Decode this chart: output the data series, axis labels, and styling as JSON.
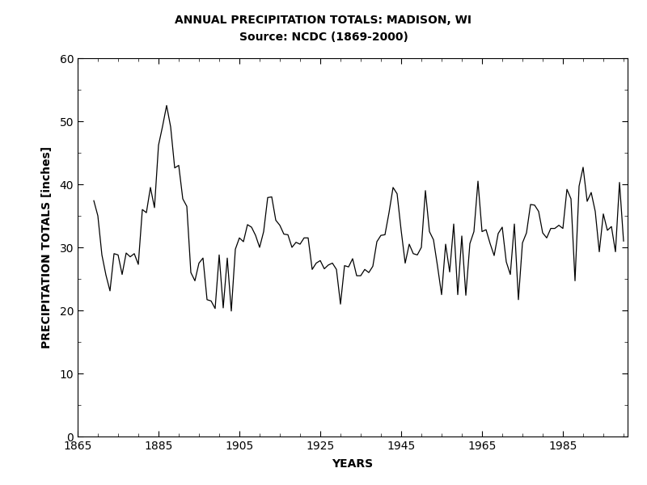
{
  "title_line1": "ANNUAL PRECIPITATION TOTALS: MADISON, WI",
  "title_line2": "Source: NCDC (1869-2000)",
  "xlabel": "YEARS",
  "ylabel": "PRECIPITATION TOTALS [inches]",
  "xlim": [
    1865,
    2001
  ],
  "ylim": [
    0,
    60
  ],
  "xticks": [
    1865,
    1885,
    1905,
    1925,
    1945,
    1965,
    1985
  ],
  "yticks": [
    0,
    10,
    20,
    30,
    40,
    50,
    60
  ],
  "line_color": "#000000",
  "background_color": "#ffffff",
  "title_fontsize": 10,
  "subtitle_fontsize": 10,
  "axis_label_fontsize": 10,
  "tick_fontsize": 10,
  "years": [
    1869,
    1870,
    1871,
    1872,
    1873,
    1874,
    1875,
    1876,
    1877,
    1878,
    1879,
    1880,
    1881,
    1882,
    1883,
    1884,
    1885,
    1886,
    1887,
    1888,
    1889,
    1890,
    1891,
    1892,
    1893,
    1894,
    1895,
    1896,
    1897,
    1898,
    1899,
    1900,
    1901,
    1902,
    1903,
    1904,
    1905,
    1906,
    1907,
    1908,
    1909,
    1910,
    1911,
    1912,
    1913,
    1914,
    1915,
    1916,
    1917,
    1918,
    1919,
    1920,
    1921,
    1922,
    1923,
    1924,
    1925,
    1926,
    1927,
    1928,
    1929,
    1930,
    1931,
    1932,
    1933,
    1934,
    1935,
    1936,
    1937,
    1938,
    1939,
    1940,
    1941,
    1942,
    1943,
    1944,
    1945,
    1946,
    1947,
    1948,
    1949,
    1950,
    1951,
    1952,
    1953,
    1954,
    1955,
    1956,
    1957,
    1958,
    1959,
    1960,
    1961,
    1962,
    1963,
    1964,
    1965,
    1966,
    1967,
    1968,
    1969,
    1970,
    1971,
    1972,
    1973,
    1974,
    1975,
    1976,
    1977,
    1978,
    1979,
    1980,
    1981,
    1982,
    1983,
    1984,
    1985,
    1986,
    1987,
    1988,
    1989,
    1990,
    1991,
    1992,
    1993,
    1994,
    1995,
    1996,
    1997,
    1998,
    1999,
    2000
  ],
  "precip": [
    37.4,
    35.0,
    28.8,
    25.6,
    23.1,
    29.0,
    28.8,
    25.7,
    29.1,
    28.5,
    29.0,
    27.3,
    36.0,
    35.5,
    39.5,
    36.3,
    46.2,
    49.2,
    52.5,
    49.1,
    42.6,
    43.0,
    37.7,
    36.5,
    26.0,
    24.7,
    27.5,
    28.3,
    21.7,
    21.5,
    20.3,
    28.8,
    20.4,
    28.3,
    19.9,
    29.7,
    31.5,
    30.9,
    33.6,
    33.2,
    31.9,
    30.0,
    32.5,
    37.9,
    38.0,
    34.3,
    33.5,
    32.1,
    32.0,
    30.0,
    30.8,
    30.5,
    31.5,
    31.5,
    26.5,
    27.5,
    27.9,
    26.6,
    27.2,
    27.5,
    26.5,
    21.0,
    27.1,
    26.9,
    28.2,
    25.5,
    25.5,
    26.5,
    26.0,
    27.0,
    30.9,
    31.9,
    32.0,
    35.5,
    39.5,
    38.5,
    32.7,
    27.5,
    30.5,
    29.0,
    28.8,
    30.0,
    39.0,
    32.5,
    31.2,
    27.0,
    22.5,
    30.5,
    26.1,
    33.7,
    22.5,
    31.8,
    22.4,
    30.6,
    32.5,
    40.5,
    32.5,
    32.8,
    30.6,
    28.7,
    32.2,
    33.2,
    27.7,
    25.7,
    33.7,
    21.7,
    30.7,
    32.3,
    36.8,
    36.7,
    35.7,
    32.3,
    31.5,
    33.0,
    33.0,
    33.5,
    33.0,
    39.2,
    37.7,
    24.7,
    39.7,
    42.7,
    37.3,
    38.7,
    35.7,
    29.3,
    35.3,
    32.7,
    33.3,
    29.3,
    40.3,
    31.0
  ]
}
